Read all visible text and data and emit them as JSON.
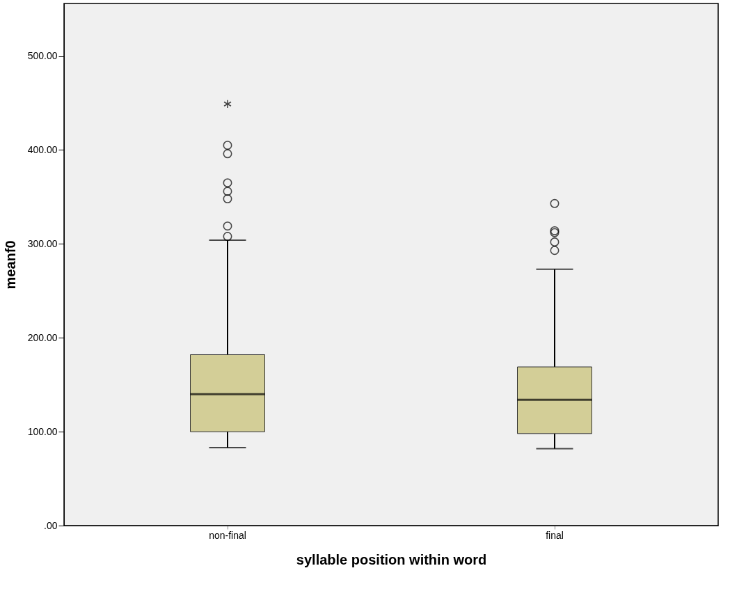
{
  "chart_data": {
    "type": "box",
    "xlabel": "syllable position within word",
    "ylabel": "meanf0",
    "categories": [
      "non-final",
      "final"
    ],
    "series": [
      {
        "color": "#d3ce97",
        "boxes": [
          {
            "low": 83,
            "q1": 100,
            "median": 140,
            "q3": 182,
            "high": 304,
            "outliers": [
              308,
              319,
              348,
              356,
              365,
              396,
              405,
              449
            ]
          },
          {
            "low": 82,
            "q1": 98,
            "median": 134,
            "q3": 169,
            "high": 273,
            "outliers": [
              293,
              302,
              312,
              314,
              343
            ]
          }
        ]
      }
    ],
    "ylim": [
      0,
      556
    ],
    "yticks": [
      {
        "value": 0,
        "label": ".00"
      },
      {
        "value": 100,
        "label": "100.00"
      },
      {
        "value": 200,
        "label": "200.00"
      },
      {
        "value": 300,
        "label": "300.00"
      },
      {
        "value": 400,
        "label": "400.00"
      },
      {
        "value": 500,
        "label": "500.00"
      }
    ],
    "grid": false
  }
}
